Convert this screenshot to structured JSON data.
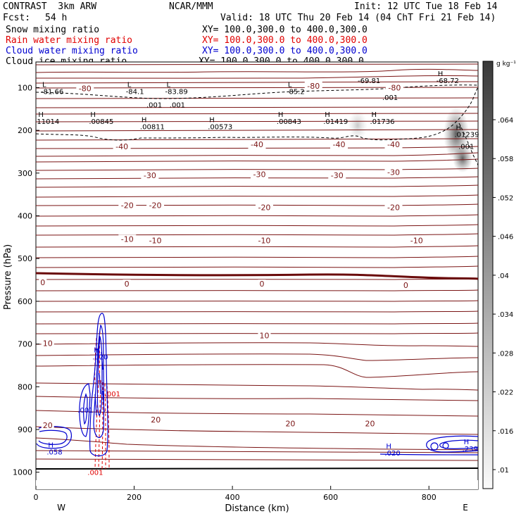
{
  "header": {
    "model": "CONTRAST  3km ARW",
    "org": "NCAR/MMM",
    "init": "Init: 12 UTC Tue 18 Feb 14",
    "fcst_label": "Fcst:",
    "fcst_value": "54 h",
    "valid": "Valid: 18 UTC Thu 20 Feb 14 (04 ChT Fri 21 Feb 14)",
    "fields": [
      {
        "name": "Snow mixing ratio",
        "xy": "XY= 100.0,300.0 to 400.0,300.0",
        "color": "#000000"
      },
      {
        "name": "Rain water mixing ratio",
        "xy": "XY= 100.0,300.0 to 400.0,300.0",
        "color": "#e00000"
      },
      {
        "name": "Cloud water mixing ratio",
        "xy": "XY= 100.0,300.0 to 400.0,300.0",
        "color": "#0000d0"
      },
      {
        "name": "Cloud ice mixing ratio",
        "xy": "XY= 100.0,300.0 to 400.0,300.0",
        "color": "#000000"
      }
    ]
  },
  "chart_data": {
    "type": "contour",
    "xlabel": "Distance (km)",
    "ylabel": "Pressure (hPa)",
    "xlim": [
      0,
      900
    ],
    "ylim": [
      1040,
      40
    ],
    "xticks": [
      0,
      200,
      400,
      600,
      800
    ],
    "yticks": [
      100,
      200,
      300,
      400,
      500,
      600,
      700,
      800,
      900,
      1000
    ],
    "direction_labels": {
      "left": "W",
      "right": "E"
    },
    "colorbar": {
      "unit": "g kg⁻¹",
      "labels": [
        ".064",
        ".058",
        ".052",
        ".046",
        ".04",
        ".034",
        ".028",
        ".022",
        ".016",
        ".01"
      ]
    },
    "temperature_contours": [
      {
        "label": "-80",
        "x": 100,
        "p": 102
      },
      {
        "label": "-80",
        "x": 565,
        "p": 96
      },
      {
        "label": "-80",
        "x": 730,
        "p": 100
      },
      {
        "label": "-40",
        "x": 175,
        "p": 238
      },
      {
        "label": "-40",
        "x": 450,
        "p": 233
      },
      {
        "label": "-40",
        "x": 617,
        "p": 233
      },
      {
        "label": "-40",
        "x": 728,
        "p": 233
      },
      {
        "label": "-30",
        "x": 232,
        "p": 305
      },
      {
        "label": "-30",
        "x": 455,
        "p": 303
      },
      {
        "label": "-30",
        "x": 613,
        "p": 305
      },
      {
        "label": "-30",
        "x": 728,
        "p": 298
      },
      {
        "label": "-20",
        "x": 186,
        "p": 375
      },
      {
        "label": "-20",
        "x": 243,
        "p": 375
      },
      {
        "label": "-20",
        "x": 465,
        "p": 380
      },
      {
        "label": "-20",
        "x": 728,
        "p": 380
      },
      {
        "label": "-10",
        "x": 186,
        "p": 454
      },
      {
        "label": "-10",
        "x": 243,
        "p": 458
      },
      {
        "label": "-10",
        "x": 465,
        "p": 458
      },
      {
        "label": "-10",
        "x": 775,
        "p": 458
      },
      {
        "label": "0",
        "x": 14,
        "p": 556
      },
      {
        "label": "0",
        "x": 185,
        "p": 559
      },
      {
        "label": "0",
        "x": 460,
        "p": 559
      },
      {
        "label": "0",
        "x": 753,
        "p": 562
      },
      {
        "label": "10",
        "x": 24,
        "p": 698
      },
      {
        "label": "10",
        "x": 465,
        "p": 680
      },
      {
        "label": "20",
        "x": 24,
        "p": 890
      },
      {
        "label": "20",
        "x": 244,
        "p": 877
      },
      {
        "label": "20",
        "x": 518,
        "p": 886
      },
      {
        "label": "20",
        "x": 680,
        "p": 886
      }
    ],
    "extrema_labels": [
      {
        "mark": "L",
        "value": "-81.66",
        "x": 10,
        "p": 112
      },
      {
        "mark": "L",
        "value": "-84.1",
        "x": 183,
        "p": 112
      },
      {
        "mark": "L",
        "value": "-83.89",
        "x": 263,
        "p": 112
      },
      {
        "mark": "L",
        "value": "-85.2",
        "x": 510,
        "p": 112
      },
      {
        "mark": "",
        "value": "-69.81",
        "x": 655,
        "p": 86
      },
      {
        "mark": "H",
        "value": "-68.72",
        "x": 815,
        "p": 86
      },
      {
        "mark": "H",
        "value": "11014",
        "x": 2,
        "p": 182
      },
      {
        "mark": "H",
        "value": ".00845",
        "x": 108,
        "p": 182
      },
      {
        "mark": "H",
        "value": ".00811",
        "x": 212,
        "p": 194
      },
      {
        "mark": "H",
        "value": ".00573",
        "x": 350,
        "p": 194
      },
      {
        "mark": "H",
        "value": ".00843",
        "x": 490,
        "p": 182
      },
      {
        "mark": "H",
        "value": ".01419",
        "x": 585,
        "p": 182
      },
      {
        "mark": "H",
        "value": ".01736",
        "x": 680,
        "p": 182
      },
      {
        "mark": "H",
        "value": ".01239",
        "x": 852,
        "p": 212
      },
      {
        "mark": "",
        "value": ".001",
        "x": 860,
        "p": 240
      }
    ],
    "ice_contours": [
      {
        "value": ".001",
        "x": 225,
        "p": 140
      },
      {
        "value": ".001",
        "x": 272,
        "p": 140
      },
      {
        "value": ".001",
        "x": 705,
        "p": 122
      }
    ],
    "cloud_water": [
      {
        "mark": "H",
        "value": ".020",
        "x": 115,
        "p": 733
      },
      {
        "mark": "",
        "value": ".001",
        "x": 85,
        "p": 857
      },
      {
        "mark": "H",
        "value": ".058",
        "x": 22,
        "p": 955
      },
      {
        "mark": "H",
        "value": ".020",
        "x": 710,
        "p": 958
      },
      {
        "mark": "H",
        "value": ".239",
        "x": 868,
        "p": 948
      }
    ],
    "rain_water": [
      {
        "value": ".001",
        "x": 140,
        "p": 816
      },
      {
        "value": ".001",
        "x": 105,
        "p": 1000
      }
    ]
  }
}
